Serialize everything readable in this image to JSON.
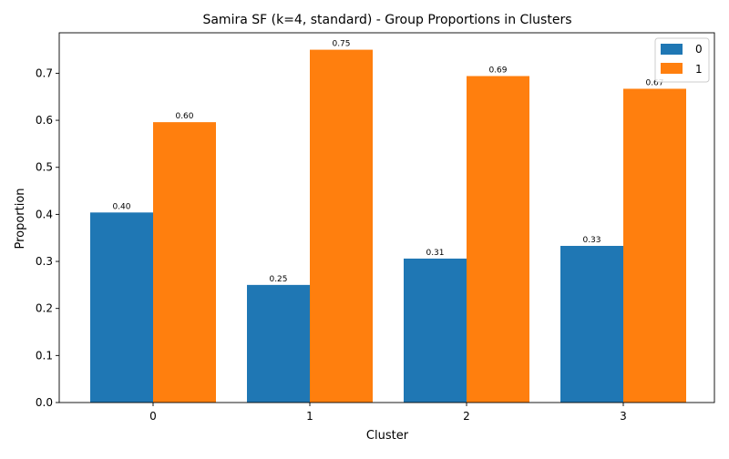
{
  "chart_data": {
    "type": "bar",
    "title": "Samira SF (k=4, standard) - Group Proportions in Clusters",
    "xlabel": "Cluster",
    "ylabel": "Proportion",
    "categories": [
      "0",
      "1",
      "2",
      "3"
    ],
    "series": [
      {
        "name": "0",
        "color": "#1f77b4",
        "values": [
          0.404,
          0.25,
          0.306,
          0.333
        ],
        "labels": [
          "0.40",
          "0.25",
          "0.31",
          "0.33"
        ]
      },
      {
        "name": "1",
        "color": "#ff7f0e",
        "values": [
          0.596,
          0.75,
          0.694,
          0.667
        ],
        "labels": [
          "0.60",
          "0.75",
          "0.69",
          "0.67"
        ]
      }
    ],
    "ylim": [
      0,
      0.786
    ],
    "yticks": [
      0.0,
      0.1,
      0.2,
      0.3,
      0.4,
      0.5,
      0.6,
      0.7
    ],
    "ytick_labels": [
      "0.0",
      "0.1",
      "0.2",
      "0.3",
      "0.4",
      "0.5",
      "0.6",
      "0.7"
    ],
    "grid": false,
    "legend_position": "top-right"
  }
}
